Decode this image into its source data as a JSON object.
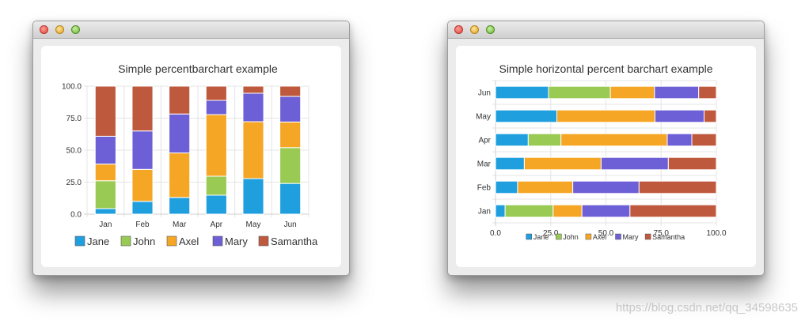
{
  "watermark": "https://blog.csdn.net/qq_34598635",
  "colors": {
    "Jane": "#209fdf",
    "John": "#99ca53",
    "Axel": "#f6a625",
    "Mary": "#6d5fd5",
    "Samantha": "#bf593e",
    "grid": "#e4e4e4",
    "axis": "#cfcfcf",
    "text": "#333333"
  },
  "chart_data": [
    {
      "type": "bar",
      "orientation": "vertical",
      "stacking": "percent",
      "title": "Simple percentbarchart example",
      "categories": [
        "Jan",
        "Feb",
        "Mar",
        "Apr",
        "May",
        "Jun"
      ],
      "series": [
        {
          "name": "Jane",
          "values": [
            1,
            2,
            3,
            4,
            5,
            6
          ]
        },
        {
          "name": "John",
          "values": [
            5,
            0,
            0,
            4,
            0,
            7
          ]
        },
        {
          "name": "Axel",
          "values": [
            3,
            5,
            8,
            13,
            8,
            5
          ]
        },
        {
          "name": "Mary",
          "values": [
            5,
            6,
            7,
            3,
            4,
            5
          ]
        },
        {
          "name": "Samantha",
          "values": [
            9,
            7,
            5,
            3,
            1,
            2
          ]
        }
      ],
      "ylim": [
        0,
        100
      ],
      "yticks": [
        "0.0",
        "25.0",
        "50.0",
        "75.0",
        "100.0"
      ],
      "grid": true,
      "legend": "bottom"
    },
    {
      "type": "bar",
      "orientation": "horizontal",
      "stacking": "percent",
      "title": "Simple horizontal percent barchart example",
      "categories": [
        "Jan",
        "Feb",
        "Mar",
        "Apr",
        "May",
        "Jun"
      ],
      "series": [
        {
          "name": "Jane",
          "values": [
            1,
            2,
            3,
            4,
            5,
            6
          ]
        },
        {
          "name": "John",
          "values": [
            5,
            0,
            0,
            4,
            0,
            7
          ]
        },
        {
          "name": "Axel",
          "values": [
            3,
            5,
            8,
            13,
            8,
            5
          ]
        },
        {
          "name": "Mary",
          "values": [
            5,
            6,
            7,
            3,
            4,
            5
          ]
        },
        {
          "name": "Samantha",
          "values": [
            9,
            7,
            5,
            3,
            1,
            2
          ]
        }
      ],
      "xlim": [
        0,
        100
      ],
      "xticks": [
        "0.0",
        "25.0",
        "50.0",
        "75.0",
        "100.0"
      ],
      "grid": true,
      "legend": "bottom"
    }
  ]
}
